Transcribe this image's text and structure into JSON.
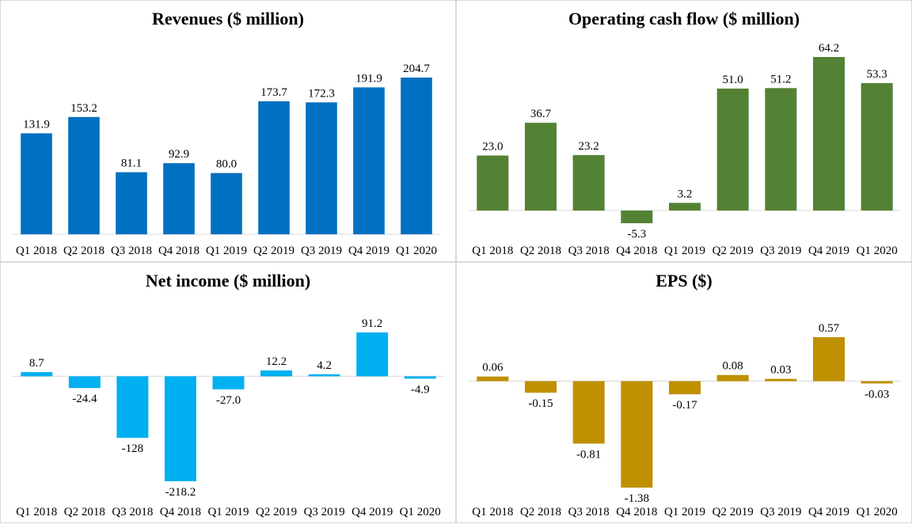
{
  "chart_data": [
    {
      "type": "bar",
      "title": "Revenues ($ million)",
      "categories": [
        "Q1 2018",
        "Q2 2018",
        "Q3 2018",
        "Q4 2018",
        "Q1 2019",
        "Q2 2019",
        "Q3 2019",
        "Q4 2019",
        "Q1 2020"
      ],
      "values": [
        131.9,
        153.2,
        81.1,
        92.9,
        80.0,
        173.7,
        172.3,
        191.9,
        204.7
      ],
      "value_labels": [
        "131.9",
        "153.2",
        "81.1",
        "92.9",
        "80.0",
        "173.7",
        "172.3",
        "191.9",
        "204.7"
      ],
      "color": "#0070C0",
      "ylim": [
        0,
        210
      ],
      "grid": false,
      "xlabel": "",
      "ylabel": ""
    },
    {
      "type": "bar",
      "title": "Operating cash flow ($ million)",
      "categories": [
        "Q1 2018",
        "Q2 2018",
        "Q3 2018",
        "Q4 2018",
        "Q1 2019",
        "Q2 2019",
        "Q3 2019",
        "Q4 2019",
        "Q1 2020"
      ],
      "values": [
        23.0,
        36.7,
        23.2,
        -5.3,
        3.2,
        51.0,
        51.2,
        64.2,
        53.3
      ],
      "value_labels": [
        "23.0",
        "36.7",
        "23.2",
        "-5.3",
        "3.2",
        "51.0",
        "51.2",
        "64.2",
        "53.3"
      ],
      "color": "#548235",
      "ylim": [
        -10,
        70
      ],
      "grid": false,
      "xlabel": "",
      "ylabel": ""
    },
    {
      "type": "bar",
      "title": "Net income ($ million)",
      "categories": [
        "Q1 2018",
        "Q2 2018",
        "Q3 2018",
        "Q4 2018",
        "Q1 2019",
        "Q2 2019",
        "Q3 2019",
        "Q4 2019",
        "Q1 2020"
      ],
      "values": [
        8.7,
        -24.4,
        -128,
        -218.2,
        -27.0,
        12.2,
        4.2,
        91.2,
        -4.9
      ],
      "value_labels": [
        "8.7",
        "-24.4",
        "-128",
        "-218.2",
        "-27.0",
        "12.2",
        "4.2",
        "91.2",
        "-4.9"
      ],
      "color": "#00B0F0",
      "ylim": [
        -230,
        100
      ],
      "grid": false,
      "xlabel": "",
      "ylabel": ""
    },
    {
      "type": "bar",
      "title": "EPS ($)",
      "categories": [
        "Q1 2018",
        "Q2 2018",
        "Q3 2018",
        "Q4 2018",
        "Q1 2019",
        "Q2 2019",
        "Q3 2019",
        "Q4 2019",
        "Q1 2020"
      ],
      "values": [
        0.06,
        -0.15,
        -0.81,
        -1.38,
        -0.17,
        0.08,
        0.03,
        0.57,
        -0.03
      ],
      "value_labels": [
        "0.06",
        "-0.15",
        "-0.81",
        "-1.38",
        "-0.17",
        "0.08",
        "0.03",
        "0.57",
        "-0.03"
      ],
      "color": "#BF9000",
      "ylim": [
        -1.45,
        0.65
      ],
      "grid": false,
      "xlabel": "",
      "ylabel": ""
    }
  ]
}
